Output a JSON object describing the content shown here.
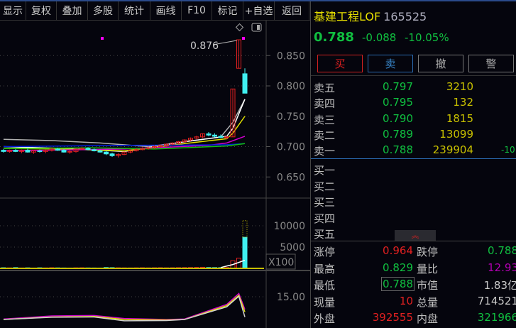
{
  "toolbar": [
    "显示",
    "复权",
    "叠加",
    "多股",
    "统计",
    "画线",
    "F10",
    "标记",
    "+自选",
    "返回"
  ],
  "quote": {
    "name": "基建工程LOF",
    "code": "165525",
    "price": "0.788",
    "change": "-0.088",
    "change_pct": "-10.05%"
  },
  "actions": {
    "buy": "买",
    "sell": "卖",
    "cancel": "撤",
    "alert": "警"
  },
  "colors": {
    "up": "#e02020",
    "down": "#40f0f0",
    "green": "#10c040",
    "yellow": "#c8c000",
    "magenta": "#d000d0"
  },
  "sell_orders": [
    {
      "label": "卖五",
      "price": "0.797",
      "volume": "3210"
    },
    {
      "label": "卖四",
      "price": "0.795",
      "volume": "132"
    },
    {
      "label": "卖三",
      "price": "0.790",
      "volume": "1815"
    },
    {
      "label": "卖二",
      "price": "0.789",
      "volume": "13099"
    },
    {
      "label": "卖一",
      "price": "0.788",
      "volume": "239904",
      "extra": "-10"
    }
  ],
  "buy_orders": [
    {
      "label": "买一"
    },
    {
      "label": "买二"
    },
    {
      "label": "买三"
    },
    {
      "label": "买四"
    },
    {
      "label": "买五"
    }
  ],
  "stats": [
    {
      "l": "涨停",
      "a": "0.964",
      "ac": "#e02020",
      "l2": "跌停",
      "b": "0.788",
      "bc": "#10c040"
    },
    {
      "l": "最高",
      "a": "0.829",
      "ac": "#10c040",
      "l2": "量比",
      "b": "12.93",
      "bc": "#b000b0"
    },
    {
      "l": "最低",
      "a": "0.788",
      "ac": "#10c040",
      "l2": "市值",
      "b": "1.83亿",
      "bc": "#c8c8c8"
    },
    {
      "l": "现量",
      "a": "10",
      "ac": "#e02020",
      "l2": "总量",
      "b": "714521",
      "bc": "#c8c8c8"
    },
    {
      "l": "外盘",
      "a": "392555",
      "ac": "#e02020",
      "l2": "内盘",
      "b": "321966",
      "bc": "#10c040"
    }
  ],
  "chart_data": {
    "type": "candlestick",
    "price_ticks": [
      "0.850",
      "0.800",
      "0.750",
      "0.700",
      "0.650"
    ],
    "volume_ticks": [
      "10000",
      "5000"
    ],
    "volume_unit": "X100",
    "indicator_ticks": [
      "15.00"
    ],
    "high_annotation": "0.876",
    "candles": [
      [
        0.694,
        0.696,
        0.69,
        0.692
      ],
      [
        0.692,
        0.695,
        0.69,
        0.694
      ],
      [
        0.694,
        0.696,
        0.691,
        0.692
      ],
      [
        0.692,
        0.695,
        0.689,
        0.694
      ],
      [
        0.694,
        0.697,
        0.69,
        0.691
      ],
      [
        0.691,
        0.694,
        0.688,
        0.693
      ],
      [
        0.693,
        0.695,
        0.69,
        0.692
      ],
      [
        0.692,
        0.695,
        0.689,
        0.694
      ],
      [
        0.694,
        0.698,
        0.692,
        0.696
      ],
      [
        0.696,
        0.698,
        0.693,
        0.694
      ],
      [
        0.694,
        0.696,
        0.69,
        0.691
      ],
      [
        0.691,
        0.694,
        0.688,
        0.692
      ],
      [
        0.692,
        0.697,
        0.69,
        0.696
      ],
      [
        0.696,
        0.699,
        0.694,
        0.697
      ],
      [
        0.697,
        0.699,
        0.694,
        0.695
      ],
      [
        0.695,
        0.697,
        0.692,
        0.693
      ],
      [
        0.693,
        0.695,
        0.69,
        0.691
      ],
      [
        0.691,
        0.693,
        0.686,
        0.688
      ],
      [
        0.688,
        0.69,
        0.683,
        0.685
      ],
      [
        0.685,
        0.689,
        0.682,
        0.687
      ],
      [
        0.687,
        0.692,
        0.686,
        0.691
      ],
      [
        0.691,
        0.694,
        0.689,
        0.693
      ],
      [
        0.693,
        0.697,
        0.692,
        0.695
      ],
      [
        0.695,
        0.699,
        0.694,
        0.697
      ],
      [
        0.697,
        0.7,
        0.695,
        0.698
      ],
      [
        0.698,
        0.702,
        0.696,
        0.7
      ],
      [
        0.7,
        0.703,
        0.698,
        0.702
      ],
      [
        0.702,
        0.705,
        0.7,
        0.704
      ],
      [
        0.704,
        0.707,
        0.702,
        0.706
      ],
      [
        0.706,
        0.709,
        0.704,
        0.708
      ],
      [
        0.708,
        0.712,
        0.706,
        0.711
      ],
      [
        0.711,
        0.715,
        0.709,
        0.714
      ],
      [
        0.714,
        0.718,
        0.712,
        0.716
      ],
      [
        0.716,
        0.722,
        0.714,
        0.721
      ],
      [
        0.721,
        0.724,
        0.717,
        0.719
      ],
      [
        0.719,
        0.722,
        0.715,
        0.717
      ],
      [
        0.717,
        0.72,
        0.714,
        0.715
      ],
      [
        0.715,
        0.718,
        0.712,
        0.716
      ],
      [
        0.716,
        0.795,
        0.716,
        0.795
      ],
      [
        0.829,
        0.876,
        0.829,
        0.876
      ],
      [
        0.82,
        0.829,
        0.788,
        0.788
      ]
    ],
    "volumes": [
      150,
      120,
      180,
      100,
      130,
      90,
      140,
      110,
      160,
      120,
      100,
      90,
      130,
      150,
      110,
      100,
      90,
      200,
      170,
      140,
      120,
      110,
      130,
      150,
      120,
      140,
      160,
      130,
      150,
      170,
      180,
      200,
      220,
      260,
      200,
      180,
      170,
      190,
      1800,
      2400,
      7300
    ],
    "volume_outline_last": 11200,
    "ma_lines": [
      {
        "color": "#b0b0b0",
        "points": [
          [
            0,
            0.712
          ],
          [
            8,
            0.71
          ],
          [
            16,
            0.706
          ],
          [
            24,
            0.7
          ],
          [
            30,
            0.708
          ],
          [
            36,
            0.716
          ],
          [
            38,
            0.74
          ],
          [
            40,
            0.778
          ]
        ]
      },
      {
        "color": "#ffffff",
        "points": [
          [
            0,
            0.7
          ],
          [
            10,
            0.697
          ],
          [
            20,
            0.692
          ],
          [
            30,
            0.708
          ],
          [
            37,
            0.717
          ],
          [
            38,
            0.73
          ],
          [
            40,
            0.778
          ]
        ]
      },
      {
        "color": "#e0e000",
        "points": [
          [
            0,
            0.697
          ],
          [
            10,
            0.696
          ],
          [
            20,
            0.693
          ],
          [
            30,
            0.705
          ],
          [
            37,
            0.713
          ],
          [
            38,
            0.722
          ],
          [
            40,
            0.75
          ]
        ]
      },
      {
        "color": "#d000d0",
        "points": [
          [
            0,
            0.693
          ],
          [
            20,
            0.696
          ],
          [
            34,
            0.702
          ],
          [
            37,
            0.706
          ],
          [
            40,
            0.717
          ]
        ]
      },
      {
        "color": "#0020e0",
        "points": [
          [
            0,
            0.7
          ],
          [
            20,
            0.702
          ],
          [
            37,
            0.703
          ],
          [
            40,
            0.705
          ]
        ]
      },
      {
        "color": "#10c010",
        "points": [
          [
            0,
            0.697
          ],
          [
            15,
            0.698
          ],
          [
            25,
            0.696
          ],
          [
            37,
            0.701
          ],
          [
            40,
            0.705
          ]
        ]
      }
    ],
    "indicator_lines": [
      {
        "color": "#d000d0",
        "points": [
          [
            0,
            6.2
          ],
          [
            8,
            7.4
          ],
          [
            15,
            7.6
          ],
          [
            20,
            6.4
          ],
          [
            27,
            6.0
          ],
          [
            30,
            6.2
          ],
          [
            37,
            12
          ],
          [
            39,
            16.3
          ],
          [
            40,
            10
          ]
        ]
      },
      {
        "color": "#e0e000",
        "points": [
          [
            0,
            6.0
          ],
          [
            8,
            7.0
          ],
          [
            15,
            7.2
          ],
          [
            20,
            6.0
          ],
          [
            27,
            5.8
          ],
          [
            30,
            6.0
          ],
          [
            37,
            11.5
          ],
          [
            39,
            15.6
          ],
          [
            40,
            9
          ]
        ]
      },
      {
        "color": "#d0d0d0",
        "points": [
          [
            0,
            6.0
          ],
          [
            8,
            6.9
          ],
          [
            15,
            7.0
          ],
          [
            20,
            5.5
          ],
          [
            27,
            5.6
          ],
          [
            30,
            6.0
          ],
          [
            37,
            11
          ],
          [
            39,
            15.2
          ],
          [
            40,
            7
          ]
        ]
      }
    ]
  }
}
